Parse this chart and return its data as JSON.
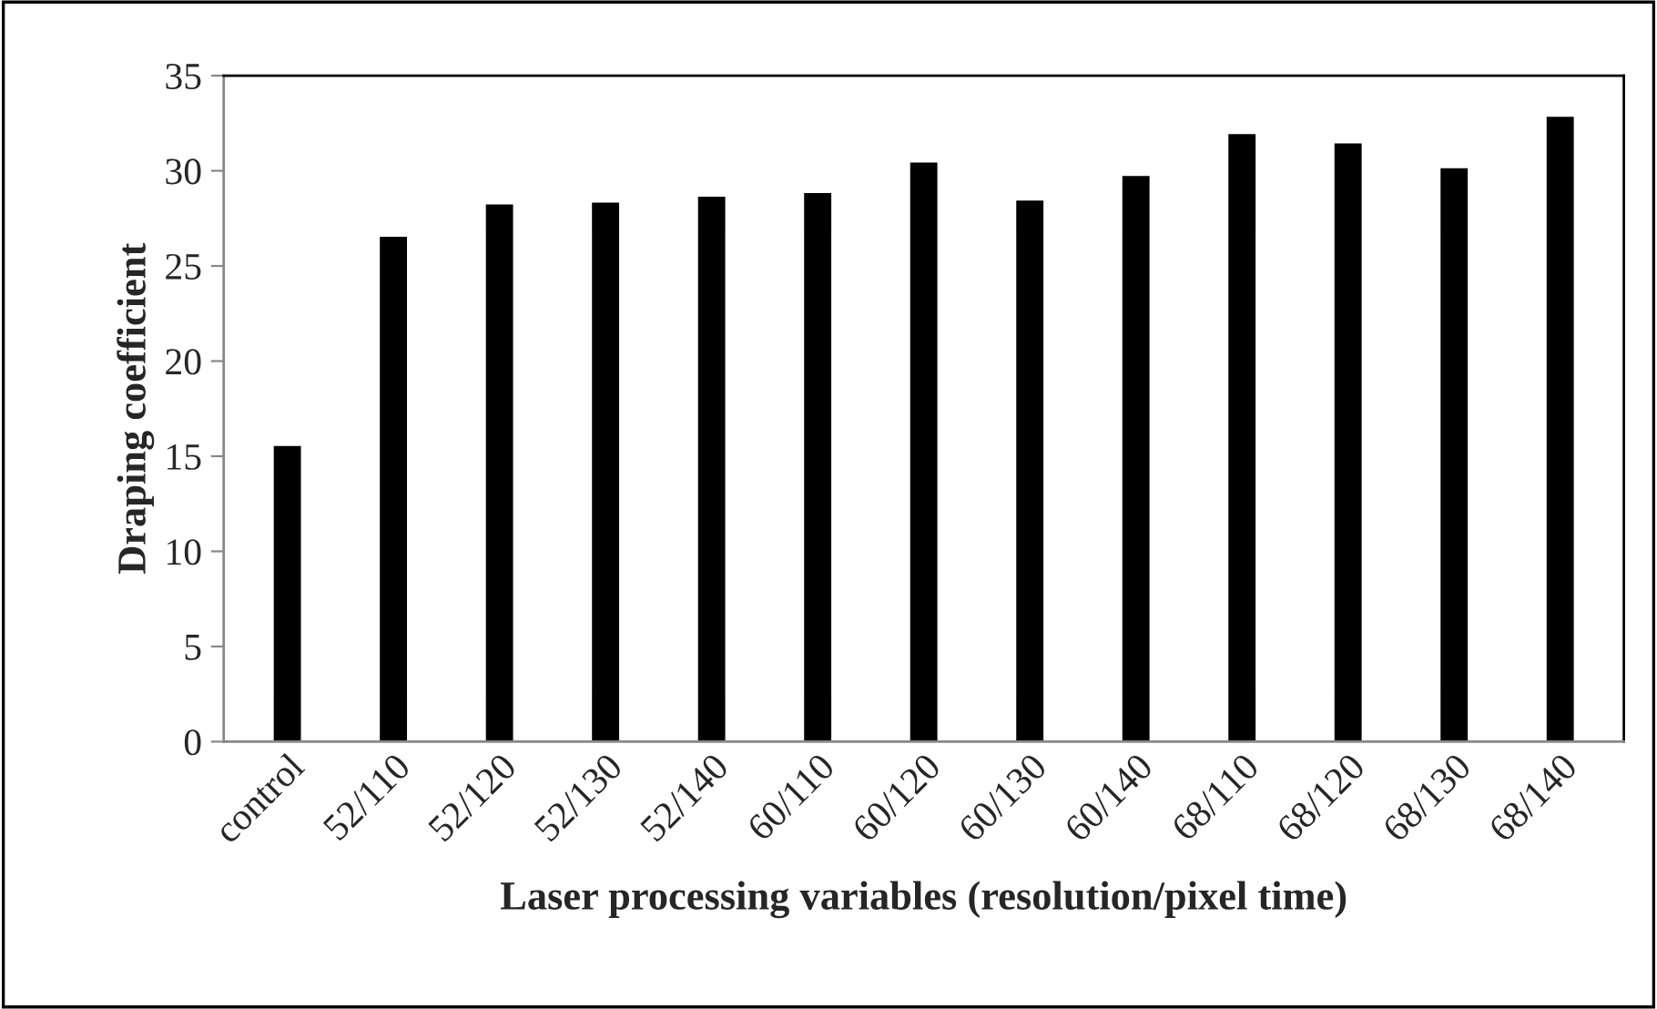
{
  "chart_data": {
    "type": "bar",
    "xlabel": "Laser processing variables (resolution/pixel time)",
    "ylabel": "Draping coefficient",
    "categories": [
      "control",
      "52/110",
      "52/120",
      "52/130",
      "52/140",
      "60/110",
      "60/120",
      "60/130",
      "60/140",
      "68/110",
      "68/120",
      "68/130",
      "68/140"
    ],
    "values": [
      15.6,
      26.6,
      28.3,
      28.4,
      28.7,
      28.9,
      30.5,
      28.5,
      29.8,
      32.0,
      31.5,
      30.2,
      32.9
    ],
    "color": "#000000",
    "ylim": [
      0,
      35
    ],
    "yticks": [
      0,
      5,
      10,
      15,
      20,
      25,
      30,
      35
    ],
    "grid": false,
    "legend": false
  }
}
